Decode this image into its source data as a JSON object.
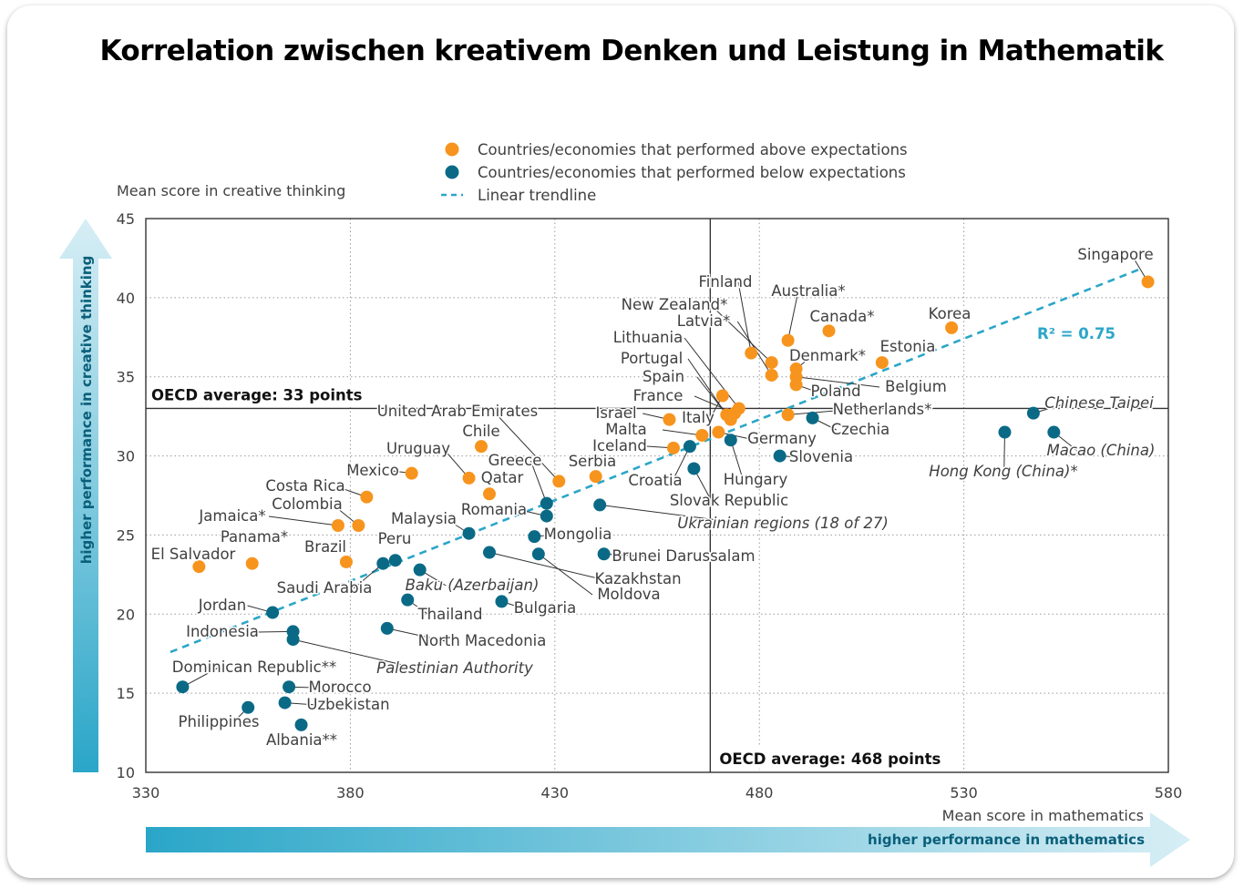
{
  "title": "Korrelation zwischen kreativem Denken und Leistung in Mathematik",
  "chart_data": {
    "type": "scatter",
    "xlabel": "Mean score in mathematics",
    "ylabel": "Mean score in creative thinking",
    "x_arrow_label": "higher performance in mathematics",
    "y_arrow_label": "higher performance in creative thinking",
    "xlim": [
      330,
      580
    ],
    "ylim": [
      10,
      45
    ],
    "xticks": [
      330,
      380,
      430,
      480,
      530,
      580
    ],
    "yticks": [
      10,
      15,
      20,
      25,
      30,
      35,
      40,
      45
    ],
    "grid": "dotted",
    "legend": {
      "placement": "top-center",
      "items": [
        {
          "label": "Countries/economies that performed above expectations",
          "marker": "above"
        },
        {
          "label": "Countries/economies that performed below expectations",
          "marker": "below"
        },
        {
          "label": "Linear trendline",
          "marker": "trend"
        }
      ]
    },
    "colors": {
      "above": "#f7941d",
      "below": "#0a6a86",
      "trend": "#2aa6c8",
      "r2": "#2aa6c8"
    },
    "oecd_avg_x": {
      "value": 468,
      "label": "OECD average: 468 points"
    },
    "oecd_avg_y": {
      "value": 33,
      "label": "OECD average: 33 points"
    },
    "trendline": {
      "x": [
        336,
        573
      ],
      "y": [
        17.6,
        41.8
      ],
      "r2_label": "R² = 0.75"
    },
    "points": [
      {
        "name": "Singapore",
        "x": 575,
        "y": 41,
        "type": "above",
        "italic": false
      },
      {
        "name": "Korea",
        "x": 527,
        "y": 38.1,
        "type": "above",
        "italic": false
      },
      {
        "name": "Canada*",
        "x": 497,
        "y": 37.9,
        "type": "above",
        "italic": false
      },
      {
        "name": "Estonia",
        "x": 510,
        "y": 35.9,
        "type": "above",
        "italic": false
      },
      {
        "name": "Australia*",
        "x": 487,
        "y": 37.3,
        "type": "above",
        "italic": false
      },
      {
        "name": "Finland",
        "x": 478,
        "y": 36.5,
        "type": "above",
        "italic": false
      },
      {
        "name": "New Zealand*",
        "x": 483,
        "y": 35.9,
        "type": "above",
        "italic": false
      },
      {
        "name": "Latvia*",
        "x": 483,
        "y": 35.1,
        "type": "above",
        "italic": false
      },
      {
        "name": "Denmark*",
        "x": 489,
        "y": 35.5,
        "type": "above",
        "italic": false
      },
      {
        "name": "Belgium",
        "x": 489,
        "y": 35.0,
        "type": "above",
        "italic": false
      },
      {
        "name": "Poland",
        "x": 489,
        "y": 34.5,
        "type": "above",
        "italic": false
      },
      {
        "name": "Lithuania",
        "x": 475,
        "y": 33.0,
        "type": "above",
        "italic": false
      },
      {
        "name": "Portugal",
        "x": 472,
        "y": 32.6,
        "type": "above",
        "italic": false
      },
      {
        "name": "Spain",
        "x": 473,
        "y": 32.3,
        "type": "above",
        "italic": false
      },
      {
        "name": "France",
        "x": 474,
        "y": 32.7,
        "type": "above",
        "italic": false
      },
      {
        "name": "Italy",
        "x": 471,
        "y": 33.8,
        "type": "above",
        "italic": false
      },
      {
        "name": "Netherlands*",
        "x": 487,
        "y": 32.6,
        "type": "above",
        "italic": false
      },
      {
        "name": "Czechia",
        "x": 493,
        "y": 32.4,
        "type": "below",
        "italic": false
      },
      {
        "name": "Israel",
        "x": 458,
        "y": 32.3,
        "type": "above",
        "italic": false
      },
      {
        "name": "Malta",
        "x": 466,
        "y": 31.3,
        "type": "above",
        "italic": false
      },
      {
        "name": "Germany",
        "x": 470,
        "y": 31.5,
        "type": "above",
        "italic": false
      },
      {
        "name": "Iceland",
        "x": 459,
        "y": 30.5,
        "type": "above",
        "italic": false
      },
      {
        "name": "Croatia",
        "x": 463,
        "y": 30.6,
        "type": "below",
        "italic": false
      },
      {
        "name": "Hungary",
        "x": 473,
        "y": 31.0,
        "type": "below",
        "italic": false
      },
      {
        "name": "Slovenia",
        "x": 485,
        "y": 30.0,
        "type": "below",
        "italic": false
      },
      {
        "name": "Slovak Republic",
        "x": 464,
        "y": 29.2,
        "type": "below",
        "italic": false
      },
      {
        "name": "Chinese Taipei",
        "x": 547,
        "y": 32.7,
        "type": "below",
        "italic": true
      },
      {
        "name": "Hong Kong (China)*",
        "x": 540,
        "y": 31.5,
        "type": "below",
        "italic": true
      },
      {
        "name": "Macao (China)",
        "x": 552,
        "y": 31.5,
        "type": "below",
        "italic": true
      },
      {
        "name": "United Arab Emirates",
        "x": 431,
        "y": 28.4,
        "type": "above",
        "italic": false
      },
      {
        "name": "Chile",
        "x": 412,
        "y": 30.6,
        "type": "above",
        "italic": false
      },
      {
        "name": "Serbia",
        "x": 440,
        "y": 28.7,
        "type": "above",
        "italic": false
      },
      {
        "name": "Uruguay",
        "x": 409,
        "y": 28.6,
        "type": "above",
        "italic": false
      },
      {
        "name": "Greece",
        "x": 428,
        "y": 27.0,
        "type": "below",
        "italic": false
      },
      {
        "name": "Qatar",
        "x": 414,
        "y": 27.6,
        "type": "above",
        "italic": false
      },
      {
        "name": "Mexico",
        "x": 395,
        "y": 28.9,
        "type": "above",
        "italic": false
      },
      {
        "name": "Romania",
        "x": 428,
        "y": 26.2,
        "type": "below",
        "italic": false
      },
      {
        "name": "Ukrainian regions (18 of 27)",
        "x": 441,
        "y": 26.9,
        "type": "below",
        "italic": true
      },
      {
        "name": "Mongolia",
        "x": 425,
        "y": 24.9,
        "type": "below",
        "italic": false
      },
      {
        "name": "Malaysia",
        "x": 409,
        "y": 25.1,
        "type": "below",
        "italic": false
      },
      {
        "name": "Brunei Darussalam",
        "x": 442,
        "y": 23.8,
        "type": "below",
        "italic": false
      },
      {
        "name": "Kazakhstan",
        "x": 414,
        "y": 23.9,
        "type": "below",
        "italic": false
      },
      {
        "name": "Moldova",
        "x": 426,
        "y": 23.8,
        "type": "below",
        "italic": false
      },
      {
        "name": "Costa Rica",
        "x": 384,
        "y": 27.4,
        "type": "above",
        "italic": false
      },
      {
        "name": "Colombia",
        "x": 382,
        "y": 25.6,
        "type": "above",
        "italic": false
      },
      {
        "name": "Jamaica*",
        "x": 377,
        "y": 25.6,
        "type": "above",
        "italic": false
      },
      {
        "name": "Panama*",
        "x": 356,
        "y": 23.2,
        "type": "above",
        "italic": false
      },
      {
        "name": "Brazil",
        "x": 379,
        "y": 23.3,
        "type": "above",
        "italic": false
      },
      {
        "name": "El Salvador",
        "x": 343,
        "y": 23.0,
        "type": "above",
        "italic": false
      },
      {
        "name": "Peru",
        "x": 391,
        "y": 23.4,
        "type": "below",
        "italic": false
      },
      {
        "name": "Saudi Arabia",
        "x": 388,
        "y": 23.2,
        "type": "below",
        "italic": false
      },
      {
        "name": "Baku (Azerbaijan)",
        "x": 397,
        "y": 22.8,
        "type": "below",
        "italic": true
      },
      {
        "name": "Thailand",
        "x": 394,
        "y": 20.9,
        "type": "below",
        "italic": false
      },
      {
        "name": "Bulgaria",
        "x": 417,
        "y": 20.8,
        "type": "below",
        "italic": false
      },
      {
        "name": "Jordan",
        "x": 361,
        "y": 20.1,
        "type": "below",
        "italic": false
      },
      {
        "name": "Indonesia",
        "x": 366,
        "y": 18.9,
        "type": "below",
        "italic": false
      },
      {
        "name": "Palestinian Authority",
        "x": 366,
        "y": 18.4,
        "type": "below",
        "italic": true
      },
      {
        "name": "North Macedonia",
        "x": 389,
        "y": 19.1,
        "type": "below",
        "italic": false
      },
      {
        "name": "Dominican Republic**",
        "x": 339,
        "y": 15.4,
        "type": "below",
        "italic": false
      },
      {
        "name": "Morocco",
        "x": 365,
        "y": 15.4,
        "type": "below",
        "italic": false
      },
      {
        "name": "Uzbekistan",
        "x": 364,
        "y": 14.4,
        "type": "below",
        "italic": false
      },
      {
        "name": "Philippines",
        "x": 355,
        "y": 14.1,
        "type": "below",
        "italic": false
      },
      {
        "name": "Albania**",
        "x": 368,
        "y": 13.0,
        "type": "below",
        "italic": false
      }
    ]
  }
}
